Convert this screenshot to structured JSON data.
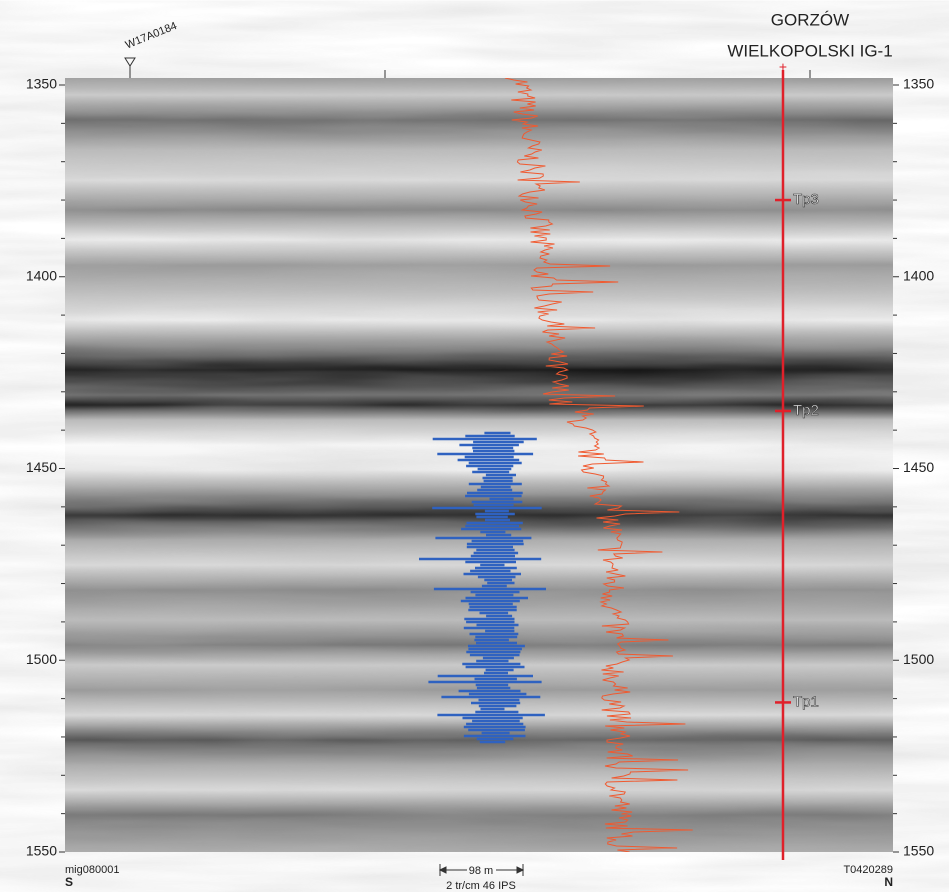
{
  "chart_data": {
    "type": "seismic",
    "well_name": "GORZÓW",
    "well_name_2": "WIELKOPOLSKI IG-1",
    "crossing_line": "W17A0184",
    "ylim": [
      1350,
      1550
    ],
    "yticks": [
      1350,
      1400,
      1450,
      1500,
      1550
    ],
    "horizons": [
      {
        "name": "Tp3",
        "value": 1380
      },
      {
        "name": "Tp2",
        "value": 1435
      },
      {
        "name": "Tp1",
        "value": 1511
      }
    ],
    "left_line": "mig080001",
    "left_direction": "S",
    "right_line": "T0420289",
    "right_direction": "N",
    "scale_label": "98 m",
    "scale_note": "2 tr/cm 46 IPS",
    "well_color": "#e0202a"
  }
}
